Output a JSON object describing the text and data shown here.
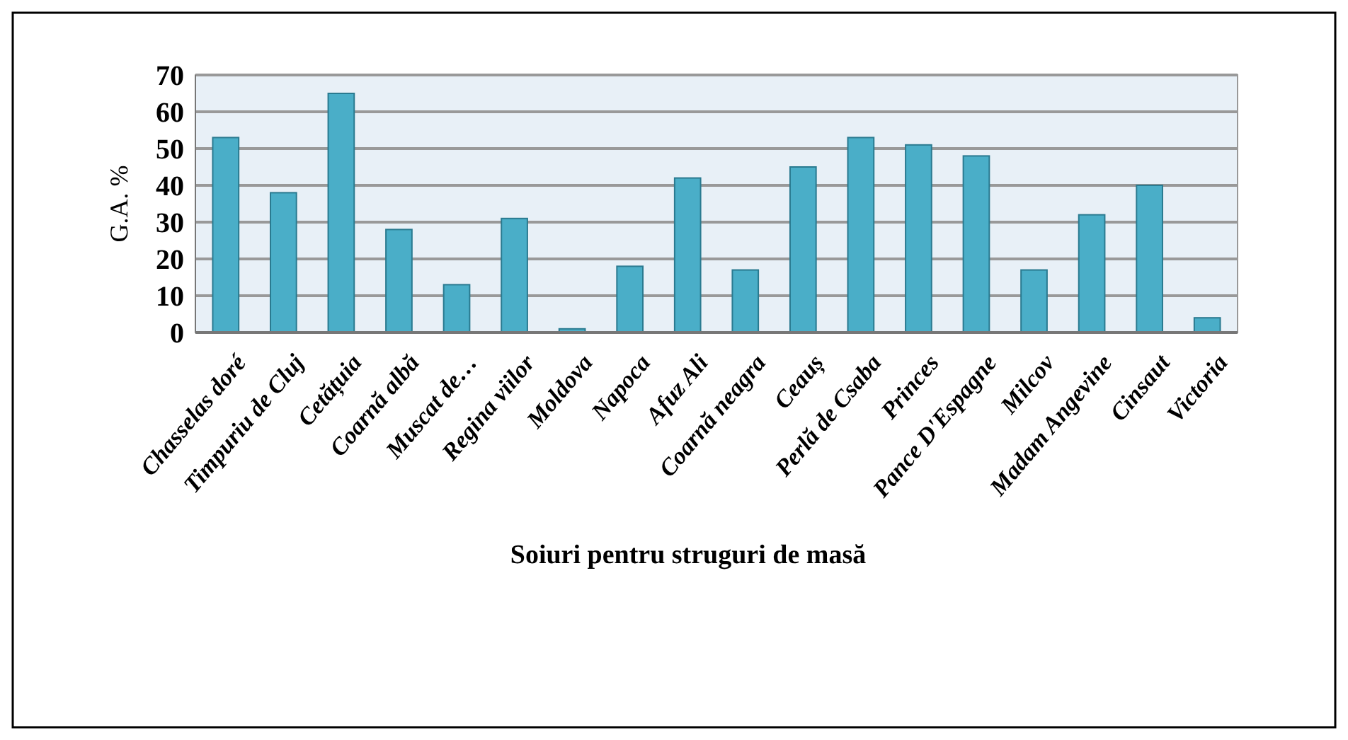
{
  "chart_data": {
    "type": "bar",
    "xlabel": "Soiuri pentru struguri de masă",
    "ylabel": "G.A. %",
    "categories": [
      "Chasselas doré",
      "Timpuriu de Cluj",
      "Cetățuia",
      "Coarnă albă",
      "Muscat de…",
      "Regina viilor",
      "Moldova",
      "Napoca",
      "Afuz Ali",
      "Coarnă neagra",
      "Ceauș",
      "Perlă de Csaba",
      "Princes",
      "Pance D'Espagne",
      "Milcov",
      "Madam Angevine",
      "Cinsaut",
      "Victoria"
    ],
    "values": [
      53,
      38,
      65,
      28,
      13,
      31,
      1,
      18,
      42,
      17,
      45,
      53,
      51,
      48,
      17,
      32,
      40,
      4
    ],
    "color": "#4aaec8",
    "ylim": [
      0,
      70
    ],
    "yticks": [
      0,
      10,
      20,
      30,
      40,
      50,
      60,
      70
    ],
    "grid": "y"
  }
}
